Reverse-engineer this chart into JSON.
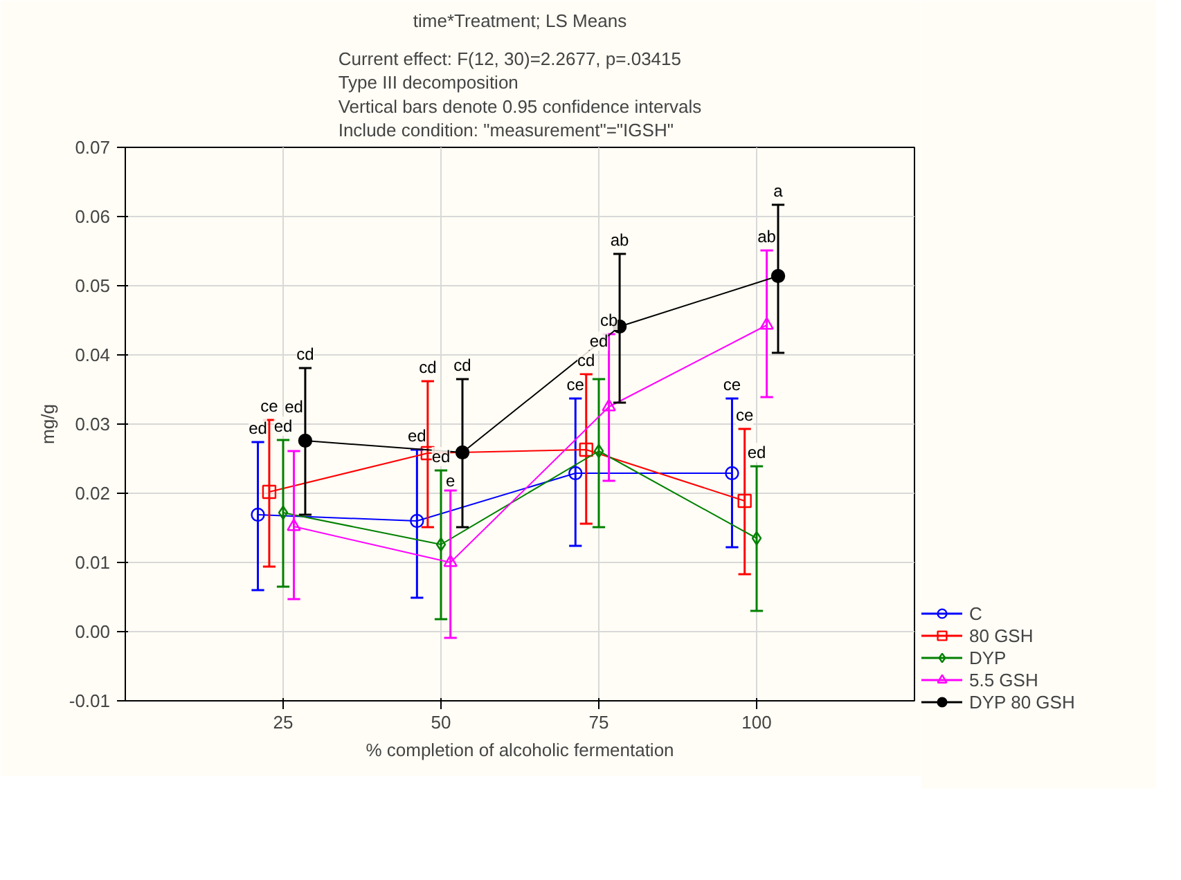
{
  "chart_data": {
    "type": "line",
    "title": "time*Treatment; LS Means",
    "subtitle": "Current effect: F(12, 30)=2.2677, p=.03415\nType III decomposition\nVertical bars denote 0.95 confidence intervals\nInclude condition:  \"measurement\"=\"IGSH\"",
    "xlabel": "% completion of alcoholic fermentation",
    "ylabel": "mg/g",
    "xlim": [
      0,
      125
    ],
    "xticks": [
      25,
      50,
      75,
      100
    ],
    "ylim": [
      -0.01,
      0.07
    ],
    "yticks": [
      {
        "value": -0.01,
        "label": "-0.01"
      },
      {
        "value": 0,
        "label": "0.00"
      },
      {
        "value": 0.01,
        "label": "0.01"
      },
      {
        "value": 0.02,
        "label": "0.02"
      },
      {
        "value": 0.03,
        "label": "0.03"
      },
      {
        "value": 0.04,
        "label": "0.04"
      },
      {
        "value": 0.05,
        "label": "0.05"
      },
      {
        "value": 0.06,
        "label": "0.06"
      },
      {
        "value": 0.07,
        "label": "0.07"
      }
    ],
    "grid": true,
    "legend": "bottom right",
    "line_style": "solid",
    "series": [
      {
        "name": "C",
        "color": "#0000ff",
        "marker": "circle",
        "x": [
          21.0,
          46.2,
          71.3,
          96.1
        ],
        "values": [
          0.0169,
          0.016,
          0.0229,
          0.0229
        ],
        "errors": [
          [
            0.006,
            0.0274
          ],
          [
            0.0049,
            0.0263
          ],
          [
            0.0124,
            0.0337
          ],
          [
            0.0122,
            0.0337
          ]
        ]
      },
      {
        "name": "80 GSH",
        "color": "#ff0000",
        "marker": "square",
        "x": [
          22.8,
          47.9,
          73.0,
          98.1
        ],
        "values": [
          0.0202,
          0.0258,
          0.0263,
          0.0189
        ],
        "errors": [
          [
            0.0094,
            0.0306
          ],
          [
            0.0151,
            0.0362
          ],
          [
            0.0156,
            0.0372
          ],
          [
            0.0083,
            0.0293
          ]
        ]
      },
      {
        "name": "DYP",
        "color": "#008000",
        "marker": "diamond",
        "x": [
          25.0,
          50.0,
          75.0,
          100.0
        ],
        "values": [
          0.0172,
          0.0126,
          0.0261,
          0.0135
        ],
        "errors": [
          [
            0.0065,
            0.0277
          ],
          [
            0.0018,
            0.0233
          ],
          [
            0.0151,
            0.0365
          ],
          [
            0.003,
            0.0239
          ]
        ]
      },
      {
        "name": "5.5 GSH",
        "color": "#ff00ff",
        "marker": "triangle",
        "x": [
          26.7,
          51.5,
          76.6,
          101.6
        ],
        "values": [
          0.0152,
          0.01,
          0.0325,
          0.0443
        ],
        "errors": [
          [
            0.0047,
            0.0261
          ],
          [
            -0.0009,
            0.0204
          ],
          [
            0.0218,
            0.043
          ],
          [
            0.0339,
            0.0551
          ]
        ]
      },
      {
        "name": "DYP 80 GSH",
        "color": "#000000",
        "marker": "filled_circle",
        "x": [
          28.5,
          53.4,
          78.3,
          103.4
        ],
        "values": [
          0.0276,
          0.0259,
          0.0441,
          0.0514
        ],
        "errors": [
          [
            0.0169,
            0.0381
          ],
          [
            0.0151,
            0.0365
          ],
          [
            0.0331,
            0.0546
          ],
          [
            0.0403,
            0.0617
          ]
        ]
      }
    ],
    "annotations": [
      {
        "text": "ed",
        "x": 21.0,
        "y": 0.0274
      },
      {
        "text": "ce",
        "x": 22.8,
        "y": 0.0306
      },
      {
        "text": "ed",
        "x": 25.0,
        "y": 0.0277
      },
      {
        "text": "ed",
        "x": 26.7,
        "y": 0.0261
      },
      {
        "text": "cd",
        "x": 28.5,
        "y": 0.0381
      },
      {
        "text": "ed",
        "x": 46.2,
        "y": 0.0263
      },
      {
        "text": "cd",
        "x": 47.9,
        "y": 0.0362
      },
      {
        "text": "ed",
        "x": 50.0,
        "y": 0.0233
      },
      {
        "text": "e",
        "x": 51.5,
        "y": 0.0204
      },
      {
        "text": "cd",
        "x": 53.4,
        "y": 0.0365
      },
      {
        "text": "ce",
        "x": 71.3,
        "y": 0.0337
      },
      {
        "text": "cd",
        "x": 73.0,
        "y": 0.0372
      },
      {
        "text": "ed",
        "x": 75.0,
        "y": 0.0365
      },
      {
        "text": "cb",
        "x": 76.6,
        "y": 0.043
      },
      {
        "text": "ab",
        "x": 78.3,
        "y": 0.0546
      },
      {
        "text": "ce",
        "x": 96.1,
        "y": 0.0337
      },
      {
        "text": "ce",
        "x": 98.1,
        "y": 0.0293
      },
      {
        "text": "ed",
        "x": 100.0,
        "y": 0.0239
      },
      {
        "text": "ab",
        "x": 101.6,
        "y": 0.0551
      },
      {
        "text": "a",
        "x": 103.4,
        "y": 0.0617
      }
    ]
  }
}
